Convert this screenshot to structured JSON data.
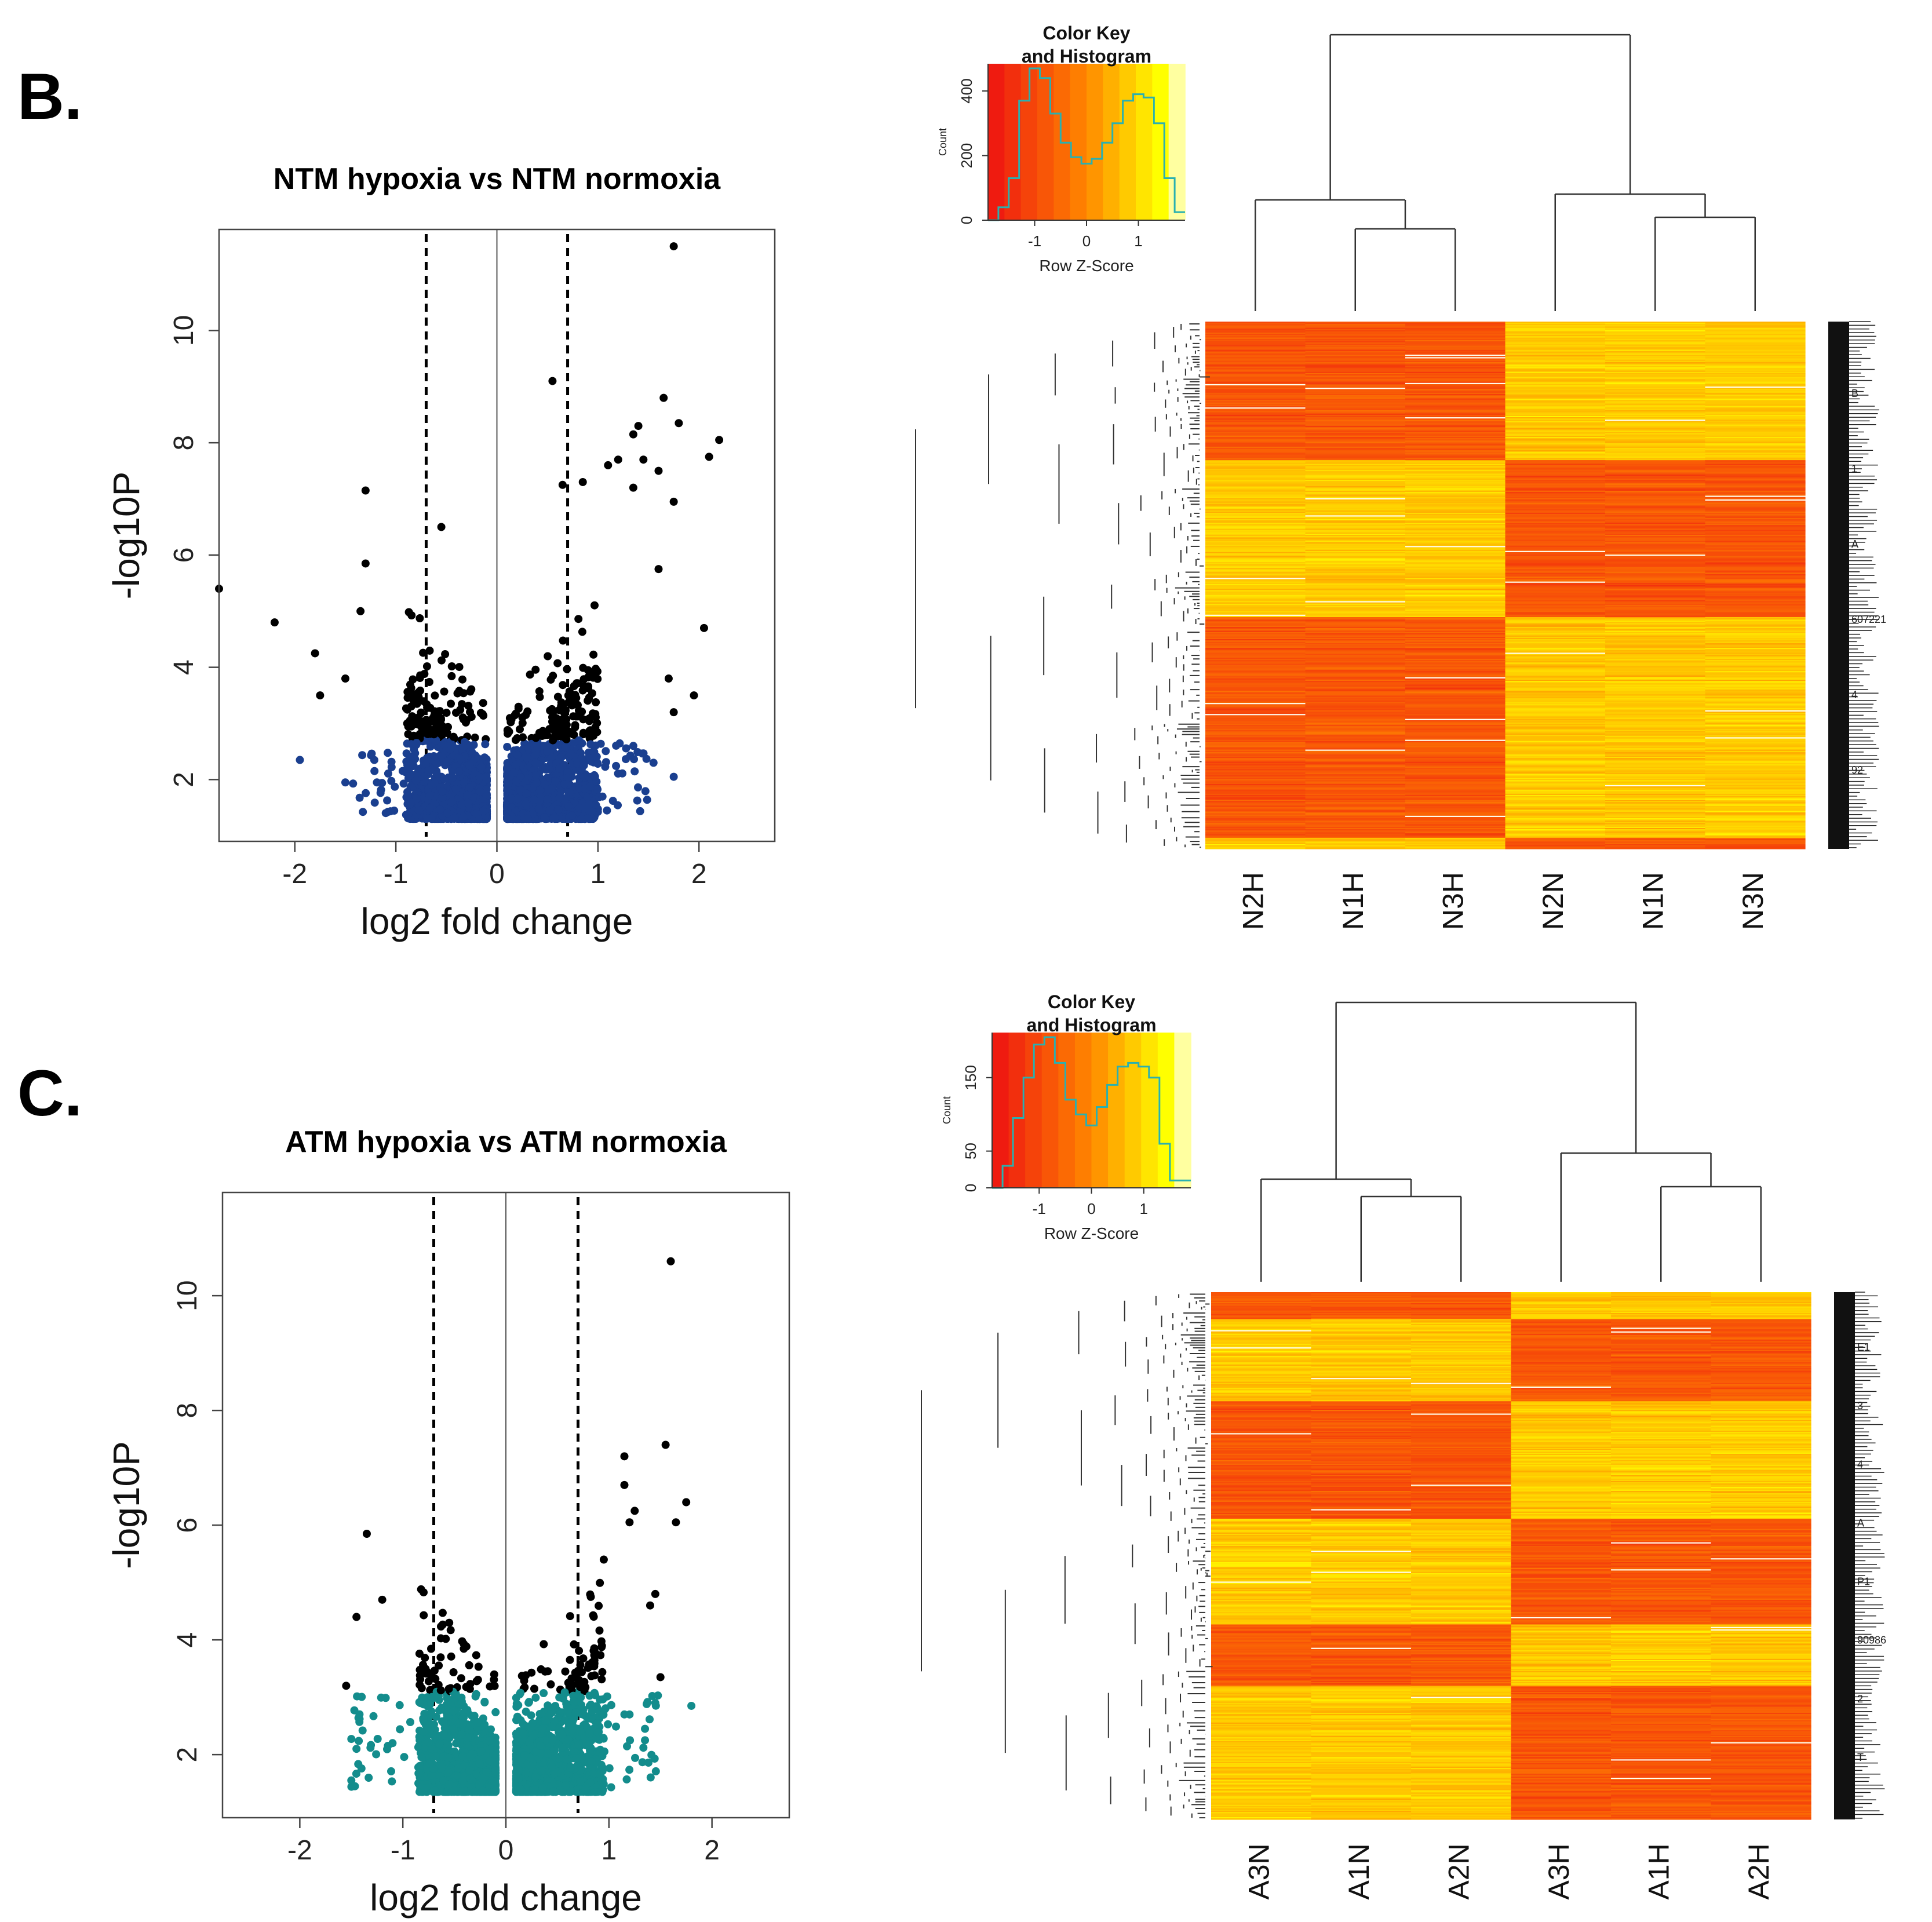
{
  "panel_labels": [
    "B.",
    "C."
  ],
  "chart_data": [
    {
      "type": "scatter",
      "title": "NTM hypoxia vs NTM normoxia",
      "xlabel": "log2 fold change",
      "ylabel": "-log10P",
      "xlim": [
        -2.75,
        2.75
      ],
      "ylim": [
        0.9,
        11.8
      ],
      "xticks": [
        "-2",
        "-1",
        "0",
        "1",
        "2"
      ],
      "xtick_values": [
        -2,
        -1,
        0,
        1,
        2
      ],
      "yticks": [
        "2",
        "4",
        "6",
        "8",
        "10"
      ],
      "ytick_values": [
        2,
        4,
        6,
        8,
        10
      ],
      "fc_thresholds": [
        -0.7,
        0.7
      ],
      "significance_cutoff": 2.7,
      "nonsig_color": "#1a3f8f",
      "sig_color": "#000000",
      "labeled_points": [
        {
          "x": 1.75,
          "y": 11.5
        },
        {
          "x": 0.55,
          "y": 9.1
        },
        {
          "x": 1.65,
          "y": 8.8
        },
        {
          "x": 1.8,
          "y": 8.35
        },
        {
          "x": 2.2,
          "y": 8.05
        },
        {
          "x": 2.1,
          "y": 7.75
        },
        {
          "x": 1.4,
          "y": 8.3
        },
        {
          "x": 1.35,
          "y": 8.15
        },
        {
          "x": -1.3,
          "y": 7.15
        },
        {
          "x": 1.2,
          "y": 7.7
        },
        {
          "x": 1.1,
          "y": 7.6
        },
        {
          "x": 1.45,
          "y": 7.7
        },
        {
          "x": 1.6,
          "y": 7.5
        },
        {
          "x": 1.75,
          "y": 6.95
        },
        {
          "x": 1.35,
          "y": 7.2
        },
        {
          "x": 0.85,
          "y": 7.3
        },
        {
          "x": 0.65,
          "y": 7.25
        },
        {
          "x": -1.3,
          "y": 5.85
        },
        {
          "x": -2.2,
          "y": 4.8
        },
        {
          "x": -1.35,
          "y": 5.0
        },
        {
          "x": -2.75,
          "y": 5.4
        },
        {
          "x": 2.05,
          "y": 4.7
        },
        {
          "x": 1.6,
          "y": 5.75
        },
        {
          "x": 1.7,
          "y": 3.8
        },
        {
          "x": 1.95,
          "y": 3.5
        },
        {
          "x": 1.75,
          "y": 3.2
        },
        {
          "x": -1.8,
          "y": 4.25
        },
        {
          "x": -1.75,
          "y": 3.5
        },
        {
          "x": -1.5,
          "y": 3.8
        },
        {
          "x": -0.55,
          "y": 6.5
        },
        {
          "x": -1.95,
          "y": 2.35
        },
        {
          "x": -1.5,
          "y": 1.95
        },
        {
          "x": 1.75,
          "y": 2.05
        },
        {
          "x": 1.55,
          "y": 2.3
        },
        {
          "x": 1.35,
          "y": 2.6
        }
      ],
      "cloud": {
        "point_count": 2600,
        "x_range_negative": [
          -0.9,
          -0.1
        ],
        "x_range_positive": [
          0.1,
          1.0
        ],
        "y_min": 1.3
      }
    },
    {
      "type": "heatmap",
      "color_key_title": "Color Key\nand Histogram",
      "color_key_title_lines": [
        "Color Key",
        "and Histogram"
      ],
      "color_key_xlabel": "Row Z-Score",
      "color_key_ylabel": "Count",
      "color_key_xticks": [
        "-1",
        "0",
        "1"
      ],
      "color_key_xtick_values": [
        -1,
        0,
        1
      ],
      "color_key_yticks": [
        "0",
        "200",
        "400"
      ],
      "color_key_ytick_values": [
        0,
        200,
        400
      ],
      "color_key_ylim": [
        0,
        470
      ],
      "color_key_xlim": [
        -1.9,
        1.9
      ],
      "histogram_bins": [
        0,
        40,
        130,
        370,
        470,
        440,
        330,
        240,
        195,
        175,
        190,
        240,
        300,
        370,
        390,
        380,
        300,
        130,
        25
      ],
      "columns": [
        "N2H",
        "N1H",
        "N3H",
        "N2N",
        "N1N",
        "N3N"
      ],
      "groups": [
        [
          0,
          1,
          2
        ],
        [
          3,
          4,
          5
        ]
      ],
      "row_count": 430,
      "row_labels": [
        "B",
        "1",
        "A",
        "607221",
        "4",
        "92"
      ],
      "colors": {
        "low": "#ee1111",
        "mid": "#ff8800",
        "high": "#ffff00",
        "top": "#fffff0"
      }
    },
    {
      "type": "scatter",
      "title": "ATM hypoxia vs ATM normoxia",
      "xlabel": "log2 fold change",
      "ylabel": "-log10P",
      "xlim": [
        -2.75,
        2.75
      ],
      "ylim": [
        0.9,
        11.8
      ],
      "xticks": [
        "-2",
        "-1",
        "0",
        "1",
        "2"
      ],
      "xtick_values": [
        -2,
        -1,
        0,
        1,
        2
      ],
      "yticks": [
        "2",
        "4",
        "6",
        "8",
        "10"
      ],
      "ytick_values": [
        2,
        4,
        6,
        8,
        10
      ],
      "fc_thresholds": [
        -0.7,
        0.7
      ],
      "significance_cutoff": 3.1,
      "nonsig_color": "#138c8c",
      "sig_color": "#000000",
      "labeled_points": [
        {
          "x": 1.6,
          "y": 10.6
        },
        {
          "x": 1.55,
          "y": 7.4
        },
        {
          "x": 1.15,
          "y": 7.2
        },
        {
          "x": 1.75,
          "y": 6.4
        },
        {
          "x": 1.65,
          "y": 6.05
        },
        {
          "x": 1.15,
          "y": 6.7
        },
        {
          "x": 1.25,
          "y": 6.25
        },
        {
          "x": 1.2,
          "y": 6.05
        },
        {
          "x": -1.35,
          "y": 5.85
        },
        {
          "x": -1.45,
          "y": 4.4
        },
        {
          "x": -1.55,
          "y": 3.2
        },
        {
          "x": -1.2,
          "y": 4.7
        },
        {
          "x": 1.45,
          "y": 4.8
        },
        {
          "x": 1.4,
          "y": 4.6
        },
        {
          "x": 0.95,
          "y": 5.4
        },
        {
          "x": 1.5,
          "y": 3.35
        },
        {
          "x": 1.45,
          "y": 2.9
        },
        {
          "x": 1.8,
          "y": 2.85
        },
        {
          "x": -1.5,
          "y": 1.55
        },
        {
          "x": -1.45,
          "y": 2.1
        },
        {
          "x": 1.35,
          "y": 2.45
        },
        {
          "x": 1.35,
          "y": 2.25
        },
        {
          "x": -1.1,
          "y": 2.2
        },
        {
          "x": 1.2,
          "y": 2.7
        }
      ],
      "cloud": {
        "point_count": 2600,
        "x_range_negative": [
          -0.85,
          -0.1
        ],
        "x_range_positive": [
          0.1,
          0.95
        ],
        "y_min": 1.35
      }
    },
    {
      "type": "heatmap",
      "color_key_title": "Color Key\nand Histogram",
      "color_key_title_lines": [
        "Color Key",
        "and Histogram"
      ],
      "color_key_xlabel": "Row Z-Score",
      "color_key_ylabel": "Count",
      "color_key_xticks": [
        "-1",
        "0",
        "1"
      ],
      "color_key_xtick_values": [
        -1,
        0,
        1
      ],
      "color_key_yticks": [
        "0",
        "50",
        "150"
      ],
      "color_key_ytick_values": [
        0,
        50,
        150
      ],
      "color_key_ylim": [
        0,
        205
      ],
      "color_key_xlim": [
        -1.9,
        1.9
      ],
      "histogram_bins": [
        0,
        30,
        95,
        150,
        195,
        205,
        170,
        120,
        100,
        85,
        110,
        140,
        165,
        170,
        165,
        150,
        60,
        10,
        10
      ],
      "columns": [
        "A3N",
        "A1N",
        "A2N",
        "A3H",
        "A1H",
        "A2H"
      ],
      "groups": [
        [
          0,
          1,
          2
        ],
        [
          3,
          4,
          5
        ]
      ],
      "row_count": 430,
      "row_labels": [
        "E1",
        "3",
        "4",
        "A",
        "P1",
        "90986",
        "2",
        "T"
      ],
      "colors": {
        "low": "#ee1111",
        "mid": "#ff8800",
        "high": "#ffff00",
        "top": "#fffff0"
      }
    }
  ]
}
